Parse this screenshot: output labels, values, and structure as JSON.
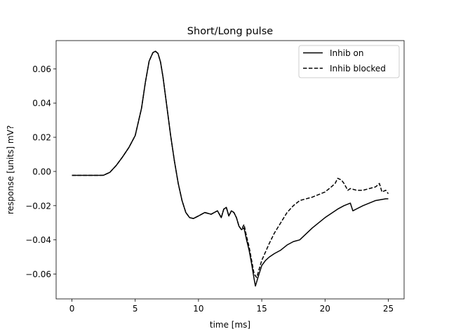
{
  "chart_data": {
    "type": "line",
    "title": "Short/Long pulse",
    "xlabel": "time [ms]",
    "ylabel": "response [units] mV?",
    "xlim": [
      -1.25,
      26.25
    ],
    "ylim": [
      -0.0745,
      0.0765
    ],
    "xticks": [
      0,
      5,
      10,
      15,
      20,
      25
    ],
    "xtick_labels": [
      "0",
      "5",
      "10",
      "15",
      "20",
      "25"
    ],
    "yticks": [
      -0.06,
      -0.04,
      -0.02,
      0.0,
      0.02,
      0.04,
      0.06
    ],
    "ytick_labels": [
      "−0.06",
      "−0.04",
      "−0.02",
      "0.00",
      "0.02",
      "0.04",
      "0.06"
    ],
    "grid": false,
    "legend_position": "top-right",
    "series": [
      {
        "name": "Inhib on",
        "style": "solid",
        "color": "#000000",
        "x": [
          0,
          1,
          2,
          2.5,
          3,
          3.5,
          4,
          4.5,
          5,
          5.5,
          5.8,
          6.1,
          6.4,
          6.6,
          6.8,
          7.0,
          7.2,
          7.5,
          7.8,
          8.1,
          8.4,
          8.7,
          9.0,
          9.3,
          9.6,
          10.0,
          10.5,
          11.0,
          11.5,
          11.8,
          12.0,
          12.2,
          12.4,
          12.6,
          12.8,
          13.0,
          13.2,
          13.4,
          13.6,
          13.8,
          14.0,
          14.2,
          14.4,
          14.5,
          14.7,
          15.0,
          15.3,
          15.6,
          16.0,
          16.5,
          17.0,
          17.5,
          18.0,
          19.0,
          20.0,
          21.0,
          21.5,
          22.0,
          22.2,
          23.0,
          24.0,
          24.8,
          25.0
        ],
        "y": [
          -0.0023,
          -0.0023,
          -0.0023,
          -0.0022,
          -0.0005,
          0.0035,
          0.0085,
          0.014,
          0.021,
          0.037,
          0.052,
          0.0645,
          0.0695,
          0.0703,
          0.069,
          0.064,
          0.055,
          0.038,
          0.021,
          0.006,
          -0.007,
          -0.017,
          -0.024,
          -0.027,
          -0.0275,
          -0.026,
          -0.024,
          -0.025,
          -0.023,
          -0.027,
          -0.022,
          -0.021,
          -0.026,
          -0.023,
          -0.024,
          -0.027,
          -0.032,
          -0.034,
          -0.033,
          -0.04,
          -0.046,
          -0.054,
          -0.063,
          -0.067,
          -0.062,
          -0.055,
          -0.052,
          -0.05,
          -0.048,
          -0.046,
          -0.043,
          -0.041,
          -0.04,
          -0.033,
          -0.027,
          -0.022,
          -0.02,
          -0.0185,
          -0.023,
          -0.02,
          -0.017,
          -0.016,
          -0.016
        ]
      },
      {
        "name": "Inhib blocked",
        "style": "dashed",
        "color": "#000000",
        "x": [
          0,
          1,
          2,
          2.5,
          3,
          3.5,
          4,
          4.5,
          5,
          5.5,
          5.8,
          6.1,
          6.4,
          6.6,
          6.8,
          7.0,
          7.2,
          7.5,
          7.8,
          8.1,
          8.4,
          8.7,
          9.0,
          9.3,
          9.6,
          10.0,
          10.5,
          11.0,
          11.5,
          11.8,
          12.0,
          12.2,
          12.4,
          12.6,
          12.8,
          13.0,
          13.2,
          13.4,
          13.6,
          13.8,
          14.0,
          14.2,
          14.4,
          14.6,
          14.8,
          15.0,
          15.3,
          15.6,
          16.0,
          16.5,
          17.0,
          17.5,
          18.0,
          19.0,
          20.0,
          20.5,
          20.8,
          21.0,
          21.3,
          21.5,
          21.8,
          22.0,
          22.5,
          23.0,
          23.5,
          24.0,
          24.3,
          24.5,
          24.8,
          25.0
        ],
        "y": [
          -0.0023,
          -0.0023,
          -0.0023,
          -0.0022,
          -0.0005,
          0.0035,
          0.0085,
          0.014,
          0.021,
          0.037,
          0.052,
          0.0645,
          0.0695,
          0.0703,
          0.069,
          0.064,
          0.055,
          0.038,
          0.021,
          0.006,
          -0.007,
          -0.017,
          -0.024,
          -0.027,
          -0.0275,
          -0.026,
          -0.024,
          -0.025,
          -0.023,
          -0.027,
          -0.022,
          -0.021,
          -0.026,
          -0.023,
          -0.024,
          -0.027,
          -0.032,
          -0.034,
          -0.031,
          -0.038,
          -0.044,
          -0.052,
          -0.06,
          -0.062,
          -0.057,
          -0.052,
          -0.047,
          -0.042,
          -0.036,
          -0.03,
          -0.024,
          -0.02,
          -0.017,
          -0.015,
          -0.012,
          -0.009,
          -0.007,
          -0.004,
          -0.005,
          -0.007,
          -0.011,
          -0.01,
          -0.011,
          -0.011,
          -0.01,
          -0.009,
          -0.007,
          -0.012,
          -0.011,
          -0.013
        ]
      }
    ]
  }
}
